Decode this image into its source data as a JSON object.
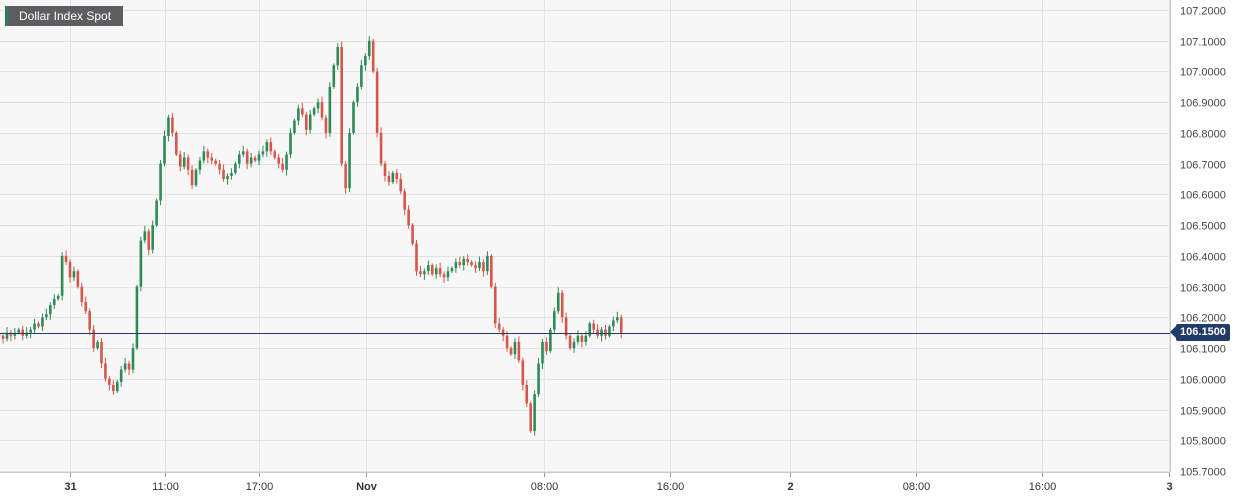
{
  "chart_data": {
    "type": "candlestick",
    "title": "Dollar Index Spot",
    "last_price_label": "106.1500",
    "last_price": 106.15,
    "ylim": [
      105.7,
      107.2
    ],
    "y_ticks": [
      "107.2000",
      "107.1000",
      "107.0000",
      "106.9000",
      "106.8000",
      "106.7000",
      "106.6000",
      "106.5000",
      "106.4000",
      "106.3000",
      "106.2000",
      "106.1000",
      "106.0000",
      "105.9000",
      "105.8000",
      "105.7000"
    ],
    "x_ticks": [
      {
        "label": "31",
        "bold": true,
        "t": 5
      },
      {
        "label": "11:00",
        "bold": false,
        "t": 11
      },
      {
        "label": "17:00",
        "bold": false,
        "t": 17
      },
      {
        "label": "Nov",
        "bold": true,
        "t": 23.8
      },
      {
        "label": "08:00",
        "bold": false,
        "t": 35.1
      },
      {
        "label": "16:00",
        "bold": false,
        "t": 43.1
      },
      {
        "label": "2",
        "bold": true,
        "t": 50.7
      },
      {
        "label": "08:00",
        "bold": false,
        "t": 58.7
      },
      {
        "label": "16:00",
        "bold": false,
        "t": 66.7
      },
      {
        "label": "3",
        "bold": true,
        "t": 74.8
      }
    ],
    "grid": true,
    "colors": {
      "up": "#2e8b57",
      "down": "#d5574b",
      "grid": "#e3e3e3",
      "price_line": "#1f3b66",
      "plot_bg": "#f7f7f7"
    },
    "t_start": 0.5,
    "t_step": 0.25,
    "closes": [
      106.14,
      106.13,
      106.15,
      106.14,
      106.15,
      106.16,
      106.14,
      106.15,
      106.16,
      106.18,
      106.17,
      106.2,
      106.21,
      106.24,
      106.26,
      106.27,
      106.4,
      106.38,
      106.33,
      106.35,
      106.3,
      106.25,
      106.22,
      106.16,
      106.1,
      106.12,
      106.05,
      106.0,
      105.98,
      105.96,
      105.99,
      106.03,
      106.05,
      106.03,
      106.1,
      106.3,
      106.45,
      106.48,
      106.42,
      106.5,
      106.58,
      106.7,
      106.79,
      106.85,
      106.8,
      106.73,
      106.69,
      106.72,
      106.68,
      106.63,
      106.68,
      106.71,
      106.74,
      106.72,
      106.71,
      106.7,
      106.68,
      106.65,
      106.66,
      106.67,
      106.7,
      106.73,
      106.74,
      106.7,
      106.72,
      106.71,
      106.73,
      106.74,
      106.77,
      106.74,
      106.72,
      106.7,
      106.68,
      106.73,
      106.8,
      106.84,
      106.88,
      106.86,
      106.81,
      106.86,
      106.88,
      106.9,
      106.85,
      106.8,
      106.95,
      107.02,
      107.08,
      106.7,
      106.62,
      106.8,
      106.9,
      106.95,
      107.02,
      107.05,
      107.1,
      107.0,
      106.8,
      106.7,
      106.66,
      106.64,
      106.67,
      106.65,
      106.61,
      106.55,
      106.5,
      106.44,
      106.35,
      106.34,
      106.35,
      106.37,
      106.34,
      106.36,
      106.34,
      106.33,
      106.35,
      106.36,
      106.38,
      106.37,
      106.39,
      106.38,
      106.37,
      106.36,
      106.38,
      106.35,
      106.4,
      106.3,
      106.18,
      106.16,
      106.14,
      106.1,
      106.08,
      106.12,
      106.06,
      105.98,
      105.92,
      105.83,
      105.95,
      106.05,
      106.12,
      106.09,
      106.16,
      106.22,
      106.28,
      106.2,
      106.14,
      106.1,
      106.12,
      106.14,
      106.12,
      106.14,
      106.18,
      106.16,
      106.14,
      106.16,
      106.14,
      106.17,
      106.19,
      106.2,
      106.15
    ]
  }
}
